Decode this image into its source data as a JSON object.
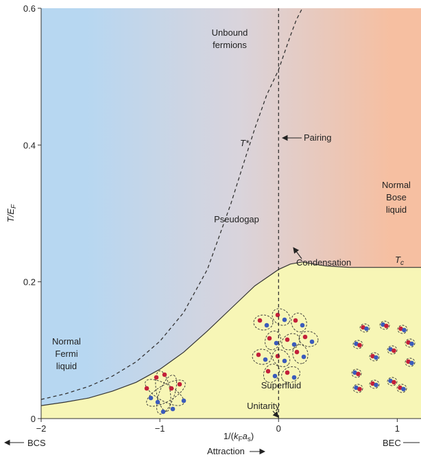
{
  "chart_data": {
    "type": "line",
    "xlabel": "1/(k_F a_s)",
    "ylabel": "T/E_F",
    "xlim": [
      -2,
      1.2
    ],
    "ylim": [
      0,
      0.6
    ],
    "x_ticks": [
      {
        "value": -2,
        "label": "−2"
      },
      {
        "value": -1,
        "label": "−1"
      },
      {
        "value": 0,
        "label": "0"
      },
      {
        "value": 1,
        "label": "1"
      }
    ],
    "y_ticks": [
      {
        "value": 0,
        "label": "0"
      },
      {
        "value": 0.2,
        "label": "0.2"
      },
      {
        "value": 0.4,
        "label": "0.4"
      },
      {
        "value": 0.6,
        "label": "0.6"
      }
    ],
    "series": [
      {
        "name": "T_c",
        "style": "solid",
        "x": [
          -2.0,
          -1.8,
          -1.6,
          -1.4,
          -1.2,
          -1.0,
          -0.8,
          -0.6,
          -0.4,
          -0.2,
          0.0,
          0.1,
          0.2,
          0.3,
          0.4,
          0.6,
          0.8,
          1.0,
          1.2
        ],
        "y": [
          0.019,
          0.024,
          0.03,
          0.04,
          0.053,
          0.072,
          0.097,
          0.128,
          0.161,
          0.194,
          0.218,
          0.226,
          0.229,
          0.226,
          0.223,
          0.221,
          0.221,
          0.221,
          0.221
        ]
      },
      {
        "name": "T*",
        "style": "dashed",
        "x": [
          -2.0,
          -1.8,
          -1.6,
          -1.4,
          -1.2,
          -1.0,
          -0.8,
          -0.6,
          -0.4,
          -0.3,
          -0.2,
          -0.1,
          0.0,
          0.05,
          0.1,
          0.15,
          0.2,
          0.22
        ],
        "y": [
          0.028,
          0.036,
          0.047,
          0.062,
          0.083,
          0.113,
          0.155,
          0.218,
          0.315,
          0.37,
          0.424,
          0.473,
          0.51,
          0.535,
          0.56,
          0.583,
          0.6,
          0.61
        ]
      },
      {
        "name": "Unitarity",
        "style": "dashed",
        "x": [
          0,
          0
        ],
        "y": [
          0,
          0.6
        ]
      }
    ],
    "regions": [
      {
        "key": "unbound",
        "lines": [
          "Unbound",
          "fermions"
        ]
      },
      {
        "key": "pseudogap",
        "lines": [
          "Pseudogap"
        ]
      },
      {
        "key": "bose",
        "lines": [
          "Normal",
          "Bose",
          "liquid"
        ]
      },
      {
        "key": "fermi",
        "lines": [
          "Normal",
          "Fermi",
          "liquid"
        ]
      },
      {
        "key": "superfluid",
        "lines": [
          "Superfluid"
        ]
      }
    ],
    "annotations": {
      "pairing": "Pairing",
      "condensation": "Condensation",
      "unitarity": "Unitarity",
      "tstar": "T*",
      "tc": "T_c"
    },
    "bottom_labels": {
      "bcs": "BCS",
      "bec": "BEC",
      "attraction": "Attraction"
    },
    "colors": {
      "left_blue": "#b7d7f1",
      "mid_gray": "#d9d4dc",
      "right_orange": "#f6bfa1",
      "superfluid_yellow": "#f7f6b6",
      "line": "#333333",
      "particle_red": "#c3203a",
      "particle_blue": "#3b5bbb"
    }
  }
}
